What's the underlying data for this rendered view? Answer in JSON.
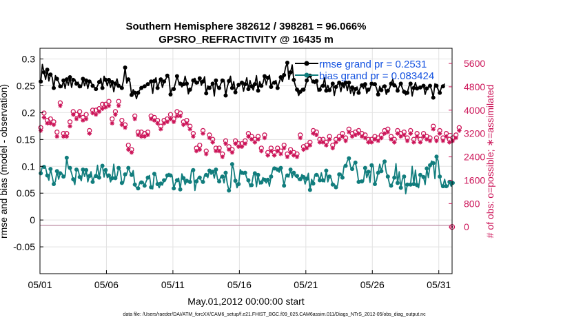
{
  "chart_data": {
    "type": "line",
    "title": "Southern Hemisphere 382612 / 398281 = 96.066%",
    "subtitle": "GPSRO_REFRACTIVITY @ 16435 m",
    "xlabel": "May.01,2012 00:00:00 start",
    "ylabel_left": "rmse and bias (model - observation)",
    "ylabel_right": "# of obs: o=possible; ∗=assimilated",
    "footer": "data file: /Users/raeder/DAI/ATM_forcXX/CAM6_setup/f.e21.FHIST_BGC.f09_025.CAM6assim.011/Diags_NTrS_2012-05/obs_diag_output.nc",
    "x_tick_labels": [
      "05/01",
      "05/06",
      "05/11",
      "05/16",
      "05/21",
      "05/26",
      "05/31"
    ],
    "x_tick_values": [
      0,
      5,
      10,
      15,
      20,
      25,
      30
    ],
    "xlim": [
      0,
      31
    ],
    "ylim_left": [
      -0.1,
      0.32
    ],
    "y_ticks_left": [
      -0.05,
      0,
      0.05,
      0.1,
      0.15,
      0.2,
      0.25,
      0.3
    ],
    "y_tick_labels_left": [
      "-0.05",
      "0",
      "0.05",
      "0.1",
      "0.15",
      "0.2",
      "0.25",
      "0.3"
    ],
    "ylim_right": [
      -1600,
      6120
    ],
    "y_ticks_right": [
      0,
      800,
      1600,
      2400,
      3200,
      4000,
      4800,
      5600
    ],
    "y_tick_labels_right": [
      "0",
      "800",
      "1600",
      "2400",
      "3200",
      "4000",
      "4800",
      "5600"
    ],
    "grid": true,
    "legend_position": "top-right",
    "colors": {
      "rmse": "#000000",
      "bias": "#117d7d",
      "obs": "#cc1458",
      "zero_line": "#c8a0b4",
      "legend_text": "#1452e0",
      "grid": "#e2e2e2"
    },
    "series": [
      {
        "name": "rmse",
        "legend_label": "rmse grand pr = 0.2531",
        "values": [
          0.258,
          0.29,
          0.275,
          0.262,
          0.28,
          0.259,
          0.271,
          0.266,
          0.246,
          0.269,
          0.263,
          0.257,
          0.249,
          0.247,
          0.26,
          0.245,
          0.262,
          0.251,
          0.266,
          0.247,
          0.261,
          0.262,
          0.254,
          0.257,
          0.249,
          0.247,
          0.263,
          0.25,
          0.26,
          0.245,
          0.258,
          0.257,
          0.25,
          0.248,
          0.244,
          0.25,
          0.257,
          0.264,
          0.246,
          0.268,
          0.261,
          0.25,
          0.261,
          0.247,
          0.257,
          0.239,
          0.254,
          0.263,
          0.25,
          0.248,
          0.246,
          0.26,
          0.284,
          0.255,
          0.262,
          0.257,
          0.233,
          0.243,
          0.237,
          0.226,
          0.237,
          0.242,
          0.246,
          0.249,
          0.249,
          0.251,
          0.253,
          0.255,
          0.258,
          0.236,
          0.259,
          0.265,
          0.246,
          0.256,
          0.262,
          0.247,
          0.258,
          0.262,
          0.269,
          0.265,
          0.234,
          0.246,
          0.244,
          0.255,
          0.268,
          0.257,
          0.254,
          0.248,
          0.253,
          0.268,
          0.254,
          0.235,
          0.243,
          0.246,
          0.26,
          0.264,
          0.256,
          0.254,
          0.264,
          0.251,
          0.258,
          0.267,
          0.236,
          0.25,
          0.246,
          0.25,
          0.254,
          0.231,
          0.26,
          0.248,
          0.246,
          0.254,
          0.26,
          0.261,
          0.232,
          0.248,
          0.259,
          0.268,
          0.246,
          0.258,
          0.238,
          0.246,
          0.252,
          0.254,
          0.256,
          0.24,
          0.253,
          0.265,
          0.244,
          0.26,
          0.249,
          0.242,
          0.253,
          0.269,
          0.241,
          0.258,
          0.25,
          0.255,
          0.268,
          0.252,
          0.265,
          0.27,
          0.248,
          0.256,
          0.256,
          0.26,
          0.246,
          0.256,
          0.266,
          0.258,
          0.27,
          0.285,
          0.293,
          0.262,
          0.275,
          0.289,
          0.261,
          0.25,
          0.243,
          0.232,
          0.239,
          0.245,
          0.243,
          0.247,
          0.26,
          0.267,
          0.269,
          0.261,
          0.258,
          0.254,
          0.259,
          0.24,
          0.243,
          0.251,
          0.25,
          0.265,
          0.241,
          0.251,
          0.242,
          0.247,
          0.254,
          0.232,
          0.248,
          0.253,
          0.256,
          0.239,
          0.253,
          0.246,
          0.256,
          0.241,
          0.256,
          0.236,
          0.247,
          0.232,
          0.244,
          0.248,
          0.237,
          0.247,
          0.251,
          0.245,
          0.253,
          0.236,
          0.243,
          0.245,
          0.254,
          0.251,
          0.253,
          0.246,
          0.234,
          0.249,
          0.242,
          0.25,
          0.249,
          0.234,
          0.241,
          0.245,
          0.254,
          0.262,
          0.251,
          0.251,
          0.241,
          0.249,
          0.254,
          0.245,
          0.239,
          0.233,
          0.237,
          0.249,
          0.254,
          0.231,
          0.246,
          0.256,
          0.245,
          0.247,
          0.247,
          0.249,
          0.25,
          0.234,
          0.245,
          0.248,
          0.25,
          0.242,
          0.228,
          0.254,
          0.25,
          0.243,
          0.237,
          0.247,
          0.249,
          0.254
        ]
      },
      {
        "name": "bias",
        "legend_label": "bias grand pr = 0.083424",
        "values": [
          0.087,
          0.1,
          0.099,
          0.097,
          0.083,
          0.074,
          0.095,
          0.081,
          0.067,
          0.072,
          0.091,
          0.076,
          0.087,
          0.087,
          0.081,
          0.082,
          0.116,
          0.097,
          0.097,
          0.087,
          0.076,
          0.066,
          0.094,
          0.094,
          0.08,
          0.073,
          0.094,
          0.081,
          0.093,
          0.071,
          0.082,
          0.09,
          0.071,
          0.081,
          0.082,
          0.102,
          0.079,
          0.097,
          0.101,
          0.08,
          0.093,
          0.079,
          0.083,
          0.071,
          0.078,
          0.104,
          0.078,
          0.082,
          0.097,
          0.092,
          0.069,
          0.069,
          0.085,
          0.086,
          0.097,
          0.089,
          0.084,
          0.092,
          0.066,
          0.06,
          0.059,
          0.07,
          0.07,
          0.072,
          0.064,
          0.072,
          0.079,
          0.083,
          0.061,
          0.058,
          0.086,
          0.083,
          0.067,
          0.06,
          0.068,
          0.065,
          0.074,
          0.074,
          0.083,
          0.087,
          0.083,
          0.082,
          0.059,
          0.069,
          0.074,
          0.078,
          0.057,
          0.086,
          0.078,
          0.066,
          0.073,
          0.071,
          0.071,
          0.093,
          0.093,
          0.055,
          0.072,
          0.079,
          0.079,
          0.073,
          0.071,
          0.084,
          0.084,
          0.079,
          0.092,
          0.085,
          0.09,
          0.078,
          0.094,
          0.076,
          0.072,
          0.081,
          0.081,
          0.069,
          0.088,
          0.068,
          0.055,
          0.061,
          0.104,
          0.094,
          0.073,
          0.06,
          0.067,
          0.094,
          0.088,
          0.085,
          0.088,
          0.078,
          0.074,
          0.062,
          0.065,
          0.083,
          0.087,
          0.062,
          0.084,
          0.067,
          0.07,
          0.079,
          0.075,
          0.069,
          0.075,
          0.063,
          0.081,
          0.094,
          0.096,
          0.098,
          0.094,
          0.089,
          0.097,
          0.083,
          0.064,
          0.08,
          0.083,
          0.08,
          0.094,
          0.079,
          0.088,
          0.081,
          0.082,
          0.074,
          0.076,
          0.085,
          0.08,
          0.067,
          0.077,
          0.087,
          0.056,
          0.076,
          0.068,
          0.085,
          0.084,
          0.084,
          0.074,
          0.088,
          0.074,
          0.071,
          0.092,
          0.071,
          0.081,
          0.078,
          0.066,
          0.067,
          0.061,
          0.065,
          0.085,
          0.087,
          0.079,
          0.101,
          0.101,
          0.11,
          0.115,
          0.099,
          0.095,
          0.104,
          0.107,
          0.092,
          0.071,
          0.074,
          0.072,
          0.072,
          0.097,
          0.079,
          0.09,
          0.07,
          0.102,
          0.1,
          0.067,
          0.074,
          0.088,
          0.104,
          0.091,
          0.104,
          0.109,
          0.089,
          0.081,
          0.067,
          0.064,
          0.07,
          0.079,
          0.105,
          0.069,
          0.09,
          0.06,
          0.077,
          0.081,
          0.049,
          0.066,
          0.066,
          0.066,
          0.1,
          0.067,
          0.093,
          0.065,
          0.06,
          0.084,
          0.083,
          0.08,
          0.066,
          0.096,
          0.079,
          0.102,
          0.11,
          0.106,
          0.077,
          0.118,
          0.11,
          0.081,
          0.065,
          0.063,
          0.076,
          0.063,
          0.062,
          0.071,
          0.063,
          0.069,
          0.071
        ]
      },
      {
        "name": "obs_possible",
        "values": [
          3400,
          3600,
          3900,
          3750,
          3650,
          3550,
          3700,
          3850,
          3600,
          3500,
          3250,
          4650,
          4250,
          3400,
          3200,
          3450,
          3200,
          3200,
          3600,
          3300,
          3950,
          3550,
          3850,
          3750,
          3950,
          4000,
          3750,
          3800,
          3850,
          3600,
          3300,
          4200,
          4000,
          4050,
          4000,
          3900,
          4050,
          3800,
          4200,
          3850,
          4200,
          3750,
          4300,
          3600,
          3700,
          3400,
          3950,
          4200,
          4300,
          3900,
          3650,
          3550,
          3500,
          3300,
          2800,
          3350,
          2650,
          2850,
          3800,
          3250,
          3250,
          3250,
          3250,
          3100,
          3200,
          3800,
          3250,
          3550,
          3800,
          3750,
          3750,
          3850,
          3650,
          3600,
          3450,
          3600,
          3650,
          4100,
          3700,
          3550,
          3850,
          3800,
          3700,
          3600,
          3950,
          4250,
          3900,
          3700,
          3600,
          3500,
          3650,
          3350,
          3450,
          3100,
          3200,
          3000,
          2700,
          2950,
          2800,
          3300,
          3300,
          2700,
          2600,
          3350,
          3150,
          3000,
          3000,
          2900,
          2700,
          2400,
          2700,
          2400,
          2500,
          2900,
          2950,
          2700,
          2750,
          2750,
          2650,
          3000,
          2950,
          2850,
          2850,
          2850,
          2850,
          2900,
          2950,
          3000,
          3200,
          3050,
          3100,
          3000,
          3000,
          2950,
          3100,
          2700,
          2700,
          3000,
          3150,
          2850,
          2550,
          2650,
          2700,
          2450,
          2550,
          2600,
          2700,
          2650,
          2600,
          2600,
          2800,
          2700,
          2500,
          2600,
          2650,
          2700,
          2550,
          2500,
          2500,
          2500,
          3150,
          3050,
          2750,
          3100,
          2800,
          3050,
          2900,
          2750,
          3300,
          3200,
          3250,
          3600,
          3000,
          3150,
          3000,
          2750,
          2900,
          3200,
          3100,
          3300,
          2800,
          3050,
          3000,
          3300,
          3100,
          3200,
          3200,
          3250,
          3050,
          3050,
          3350,
          3100,
          3200,
          3150,
          3250,
          3100,
          3300,
          3250,
          3200,
          3200,
          3150,
          3050,
          3000,
          3050,
          3000,
          3150,
          3100,
          3200,
          3050,
          3150,
          3150,
          3150,
          3300,
          3000,
          3350,
          3000,
          3100,
          3150,
          3000,
          3300,
          3300,
          3050,
          3200,
          3050,
          3250,
          3000,
          3050,
          3000,
          3300,
          3450,
          3000,
          3050,
          3200,
          3100,
          3000,
          3000,
          3200,
          3250,
          3100,
          3250,
          3050,
          3000,
          3450,
          3150,
          3050,
          3350,
          3300,
          3100,
          3050,
          3250,
          3200,
          3050,
          3000,
          3250,
          3050,
          3200,
          3150,
          3450,
          3400,
          3000
        ]
      },
      {
        "name": "obs_assimilated",
        "values": [
          3300,
          3450,
          3750,
          3600,
          3550,
          3350,
          3550,
          3800,
          3500,
          3400,
          3100,
          4550,
          4150,
          3250,
          3100,
          3300,
          3100,
          3050,
          3450,
          3150,
          3850,
          3450,
          3700,
          3600,
          3800,
          3850,
          3650,
          3650,
          3700,
          3500,
          3200,
          4100,
          3900,
          3900,
          3850,
          3750,
          3950,
          3650,
          4050,
          3750,
          4100,
          3650,
          4150,
          3500,
          3550,
          3300,
          3850,
          4050,
          4150,
          3800,
          3500,
          3450,
          3400,
          3200,
          2650,
          3250,
          2550,
          2750,
          3700,
          3150,
          3150,
          3150,
          3100,
          3000,
          3100,
          3700,
          3150,
          3450,
          3700,
          3650,
          3650,
          3750,
          3550,
          3500,
          3350,
          3450,
          3550,
          3950,
          3600,
          3450,
          3700,
          3700,
          3600,
          3450,
          3800,
          4150,
          3800,
          3600,
          3500,
          3400,
          3550,
          3250,
          3350,
          3000,
          3100,
          2900,
          2600,
          2850,
          2650,
          3200,
          3200,
          2600,
          2500,
          3250,
          3050,
          2900,
          2900,
          2800,
          2600,
          2300,
          2600,
          2300,
          2400,
          2800,
          2850,
          2600,
          2650,
          2600,
          2550,
          2900,
          2850,
          2750,
          2750,
          2750,
          2750,
          2800,
          2850,
          2900,
          3100,
          2950,
          3000,
          2900,
          2900,
          2850,
          3000,
          2600,
          2600,
          2900,
          3050,
          2750,
          2450,
          2550,
          2600,
          2350,
          2450,
          2500,
          2600,
          2550,
          2500,
          2500,
          2700,
          2600,
          2400,
          2500,
          2550,
          2600,
          2450,
          2400,
          2400,
          2400,
          3050,
          2950,
          2650,
          3000,
          2700,
          2950,
          2800,
          2650,
          3200,
          3100,
          3150,
          3500,
          2900,
          3050,
          2900,
          2650,
          2800,
          3100,
          3000,
          3200,
          2700,
          2950,
          2900,
          3200,
          3000,
          3100,
          3100,
          3150,
          2950,
          2950,
          3250,
          3000,
          3100,
          3050,
          3150,
          3000,
          3200,
          3150,
          3100,
          3100,
          3050,
          2950,
          2900,
          2950,
          2900,
          3050,
          3000,
          3100,
          2950,
          3050,
          3050,
          3050,
          3200,
          2900,
          3250,
          2900,
          3000,
          3050,
          2900,
          3200,
          3200,
          2950,
          3100,
          2950,
          3150,
          2900,
          2950,
          2900,
          3200,
          3350,
          2900,
          2950,
          3100,
          3000,
          2900,
          2900,
          3100,
          3150,
          3000,
          3150,
          2950,
          2900,
          3350,
          3050,
          2950,
          3250,
          3200,
          3000,
          2950,
          3150,
          3100,
          2950,
          2900,
          3150,
          2950,
          3100,
          3050,
          3350,
          3300,
          2900
        ]
      }
    ],
    "outlier_obs": {
      "x": 31,
      "possible": 0,
      "assimilated": 0
    }
  }
}
